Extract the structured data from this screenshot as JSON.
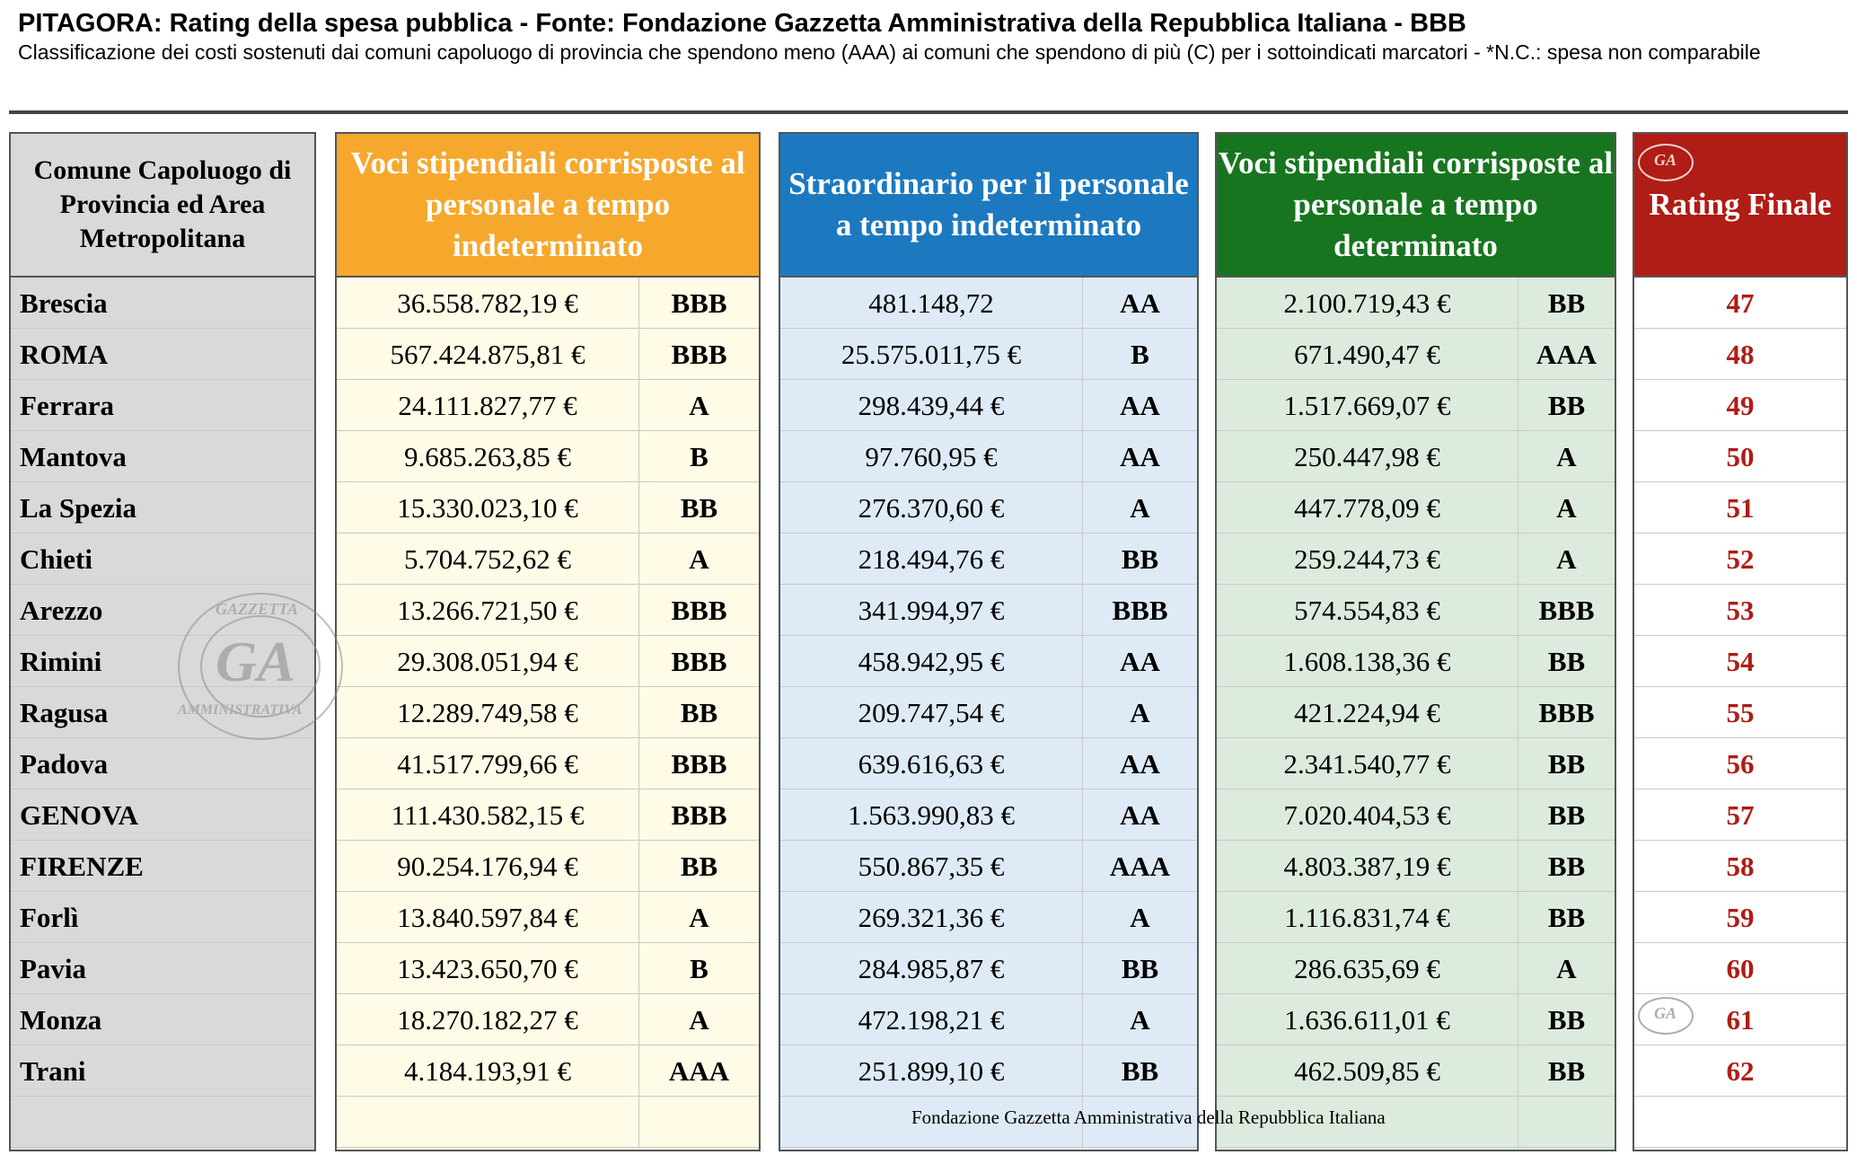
{
  "header": {
    "title": "PITAGORA: Rating della spesa pubblica - Fonte: Fondazione Gazzetta Amministrativa della Repubblica Italiana -  BBB",
    "subtitle": "Classificazione dei costi sostenuti dai comuni capoluogo di provincia che spendono meno (AAA) ai comuni che spendono di più (C) per i sottoindicati marcatori - *N.C.: spesa non comparabile"
  },
  "columns": {
    "city": "Comune Capoluogo di Provincia ed Area Metropolitana",
    "g1": "Voci stipendiali corrisposte al personale a tempo indeterminato",
    "g2": "Straordinario per il personale a tempo indeterminato",
    "g3": "Voci stipendiali corrisposte al personale a tempo determinato",
    "final": "Rating Finale"
  },
  "rows": [
    {
      "city": "Brescia",
      "v1": "36.558.782,19 €",
      "r1": "BBB",
      "v2": "481.148,72",
      "r2": "AA",
      "v3": "2.100.719,43 €",
      "r3": "BB",
      "final": "47"
    },
    {
      "city": "ROMA",
      "v1": "567.424.875,81 €",
      "r1": "BBB",
      "v2": "25.575.011,75 €",
      "r2": "B",
      "v3": "671.490,47 €",
      "r3": "AAA",
      "final": "48"
    },
    {
      "city": "Ferrara",
      "v1": "24.111.827,77 €",
      "r1": "A",
      "v2": "298.439,44 €",
      "r2": "AA",
      "v3": "1.517.669,07 €",
      "r3": "BB",
      "final": "49"
    },
    {
      "city": "Mantova",
      "v1": "9.685.263,85 €",
      "r1": "B",
      "v2": "97.760,95 €",
      "r2": "AA",
      "v3": "250.447,98 €",
      "r3": "A",
      "final": "50"
    },
    {
      "city": "La Spezia",
      "v1": "15.330.023,10 €",
      "r1": "BB",
      "v2": "276.370,60 €",
      "r2": "A",
      "v3": "447.778,09 €",
      "r3": "A",
      "final": "51"
    },
    {
      "city": "Chieti",
      "v1": "5.704.752,62 €",
      "r1": "A",
      "v2": "218.494,76 €",
      "r2": "BB",
      "v3": "259.244,73 €",
      "r3": "A",
      "final": "52"
    },
    {
      "city": "Arezzo",
      "v1": "13.266.721,50 €",
      "r1": "BBB",
      "v2": "341.994,97 €",
      "r2": "BBB",
      "v3": "574.554,83 €",
      "r3": "BBB",
      "final": "53"
    },
    {
      "city": "Rimini",
      "v1": "29.308.051,94 €",
      "r1": "BBB",
      "v2": "458.942,95 €",
      "r2": "AA",
      "v3": "1.608.138,36 €",
      "r3": "BB",
      "final": "54"
    },
    {
      "city": "Ragusa",
      "v1": "12.289.749,58 €",
      "r1": "BB",
      "v2": "209.747,54 €",
      "r2": "A",
      "v3": "421.224,94 €",
      "r3": "BBB",
      "final": "55"
    },
    {
      "city": "Padova",
      "v1": "41.517.799,66 €",
      "r1": "BBB",
      "v2": "639.616,63 €",
      "r2": "AA",
      "v3": "2.341.540,77 €",
      "r3": "BB",
      "final": "56"
    },
    {
      "city": "GENOVA",
      "v1": "111.430.582,15 €",
      "r1": "BBB",
      "v2": "1.563.990,83 €",
      "r2": "AA",
      "v3": "7.020.404,53 €",
      "r3": "BB",
      "final": "57"
    },
    {
      "city": "FIRENZE",
      "v1": "90.254.176,94 €",
      "r1": "BB",
      "v2": "550.867,35 €",
      "r2": "AAA",
      "v3": "4.803.387,19 €",
      "r3": "BB",
      "final": "58"
    },
    {
      "city": "Forlì",
      "v1": "13.840.597,84 €",
      "r1": "A",
      "v2": "269.321,36 €",
      "r2": "A",
      "v3": "1.116.831,74 €",
      "r3": "BB",
      "final": "59"
    },
    {
      "city": "Pavia",
      "v1": "13.423.650,70 €",
      "r1": "B",
      "v2": "284.985,87 €",
      "r2": "BB",
      "v3": "286.635,69 €",
      "r3": "A",
      "final": "60"
    },
    {
      "city": "Monza",
      "v1": "18.270.182,27 €",
      "r1": "A",
      "v2": "472.198,21 €",
      "r2": "A",
      "v3": "1.636.611,01 €",
      "r3": "BB",
      "final": "61"
    },
    {
      "city": "Trani",
      "v1": "4.184.193,91 €",
      "r1": "AAA",
      "v2": "251.899,10 €",
      "r2": "BB",
      "v3": "462.509,85 €",
      "r3": "BB",
      "final": "62"
    }
  ],
  "footer": "Fondazione Gazzetta Amministrativa della Repubblica Italiana",
  "seal": {
    "initials": "GA",
    "top_text": "GAZZETTA",
    "bottom_text": "AMMINISTRATIVA"
  },
  "colors": {
    "g1": "#f6a82d",
    "g2": "#1c79c0",
    "g3": "#18751f",
    "final": "#b01c16"
  }
}
